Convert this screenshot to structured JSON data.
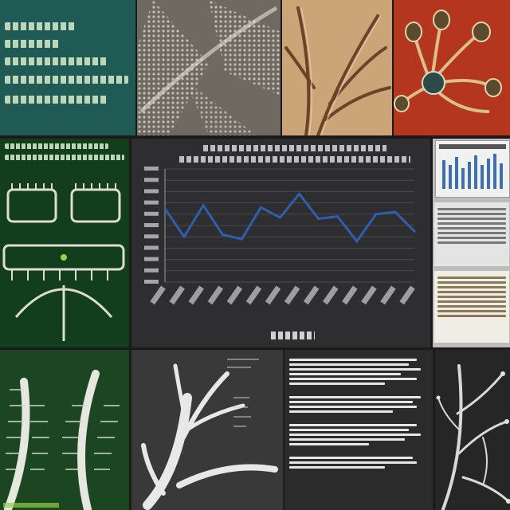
{
  "theme": {
    "teal": "#1f5a55",
    "dark_green": "#123e1e",
    "chart_bg": "#2e2e30",
    "line_blue": "#2d5fae",
    "sepia": "#c39a6a",
    "red": "#b93a22",
    "light_doc": "#dcdcdc"
  },
  "panels": [
    {
      "name": "text-card-teal"
    },
    {
      "name": "lattice-texture"
    },
    {
      "name": "sepia-branching-lines"
    },
    {
      "name": "red-flower-illustration"
    },
    {
      "name": "green-skeleton-diagram"
    },
    {
      "name": "line-chart-panel"
    },
    {
      "name": "document-stack"
    },
    {
      "name": "green-branching-render"
    },
    {
      "name": "white-coral-render"
    },
    {
      "name": "text-document-dark"
    },
    {
      "name": "bw-branching-micrograph"
    }
  ],
  "chart_data": {
    "type": "line",
    "x": [
      1,
      2,
      3,
      4,
      5,
      6,
      7,
      8,
      9,
      10,
      11,
      12,
      13,
      14
    ],
    "values": [
      65,
      40,
      68,
      42,
      38,
      66,
      57,
      78,
      56,
      58,
      36,
      60,
      62,
      45
    ],
    "ylim": [
      0,
      100
    ],
    "grid": true,
    "color": "#2d5fae"
  },
  "icons": {
    "shield": "shield-icon"
  }
}
